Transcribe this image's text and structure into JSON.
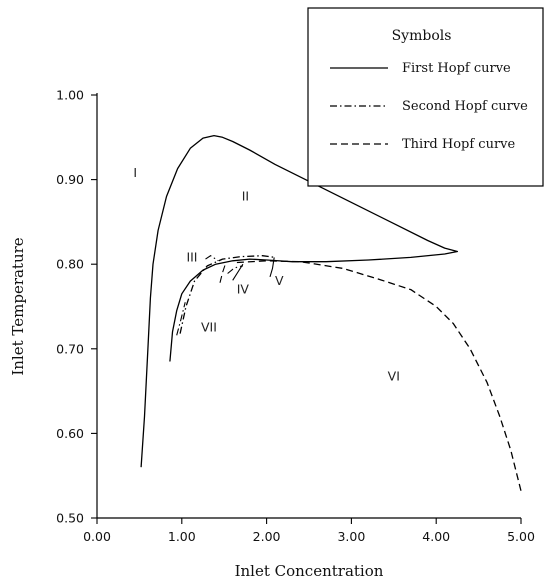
{
  "chart_data": {
    "type": "line",
    "xlabel": "Inlet Concentration",
    "ylabel": "Inlet Temperature",
    "xlim": [
      0,
      5
    ],
    "ylim": [
      0.5,
      1.0
    ],
    "xticks": [
      0,
      1,
      2,
      3,
      4,
      5
    ],
    "yticks": [
      0.5,
      0.6,
      0.7,
      0.8,
      0.9,
      1.0
    ],
    "xtick_labels": [
      "0.00",
      "1.00",
      "2.00",
      "3.00",
      "4.00",
      "5.00"
    ],
    "ytick_labels": [
      "0.50",
      "0.60",
      "0.70",
      "0.80",
      "0.90",
      "1.00"
    ],
    "grid": false,
    "legend": {
      "title": "Symbols",
      "position": "top-right",
      "entries": [
        "First Hopf curve",
        "Second Hopf curve",
        "Third Hopf curve"
      ]
    },
    "series": [
      {
        "name": "First Hopf curve",
        "dash": "solid",
        "color": "#000000",
        "x": [
          0.52,
          0.56,
          0.6,
          0.63,
          0.66,
          0.72,
          0.82,
          0.95,
          1.1,
          1.25,
          1.38,
          1.48,
          1.6,
          1.8,
          2.1,
          2.5,
          3.0,
          3.5,
          3.9,
          4.1,
          4.25,
          4.1,
          3.7,
          3.2,
          2.7,
          2.3,
          2.0,
          1.8,
          1.6,
          1.4,
          1.25,
          1.1,
          1.0,
          0.94,
          0.89,
          0.86
        ],
        "y": [
          0.56,
          0.62,
          0.7,
          0.76,
          0.8,
          0.84,
          0.88,
          0.913,
          0.937,
          0.949,
          0.952,
          0.95,
          0.945,
          0.935,
          0.918,
          0.898,
          0.873,
          0.848,
          0.828,
          0.819,
          0.815,
          0.812,
          0.808,
          0.805,
          0.803,
          0.803,
          0.805,
          0.806,
          0.804,
          0.8,
          0.793,
          0.78,
          0.765,
          0.745,
          0.72,
          0.685
        ]
      },
      {
        "name": "Second Hopf curve",
        "dash": "dash-dot",
        "color": "#000000",
        "x": [
          0.98,
          1.05,
          1.15,
          1.3,
          1.48,
          1.7,
          1.95,
          2.1
        ],
        "y": [
          0.718,
          0.75,
          0.78,
          0.798,
          0.806,
          0.809,
          0.81,
          0.808
        ]
      },
      {
        "name": "Third Hopf curve",
        "dash": "dashed",
        "color": "#000000",
        "x": [
          1.65,
          2.0,
          2.4,
          2.9,
          3.3,
          3.7,
          4.0,
          4.2,
          4.4,
          4.6,
          4.75,
          4.88,
          5.0
        ],
        "y": [
          0.802,
          0.804,
          0.803,
          0.795,
          0.783,
          0.77,
          0.75,
          0.73,
          0.7,
          0.66,
          0.62,
          0.58,
          0.532
        ]
      }
    ],
    "region_labels": [
      {
        "text": "I",
        "x": 0.45,
        "y": 0.908
      },
      {
        "text": "II",
        "x": 1.75,
        "y": 0.88
      },
      {
        "text": "III",
        "x": 1.12,
        "y": 0.808
      },
      {
        "text": "IV",
        "x": 1.72,
        "y": 0.77
      },
      {
        "text": "V",
        "x": 2.15,
        "y": 0.78
      },
      {
        "text": "VI",
        "x": 3.5,
        "y": 0.667
      },
      {
        "text": "VII",
        "x": 1.32,
        "y": 0.725
      }
    ],
    "short_branches": [
      {
        "series": "Second Hopf curve",
        "x": [
          1.28,
          1.34,
          1.43
        ],
        "y": [
          0.806,
          0.81,
          0.804
        ]
      },
      {
        "series": "First Hopf curve",
        "x": [
          1.6,
          1.67,
          1.72
        ],
        "y": [
          0.781,
          0.792,
          0.8
        ]
      },
      {
        "series": "Second Hopf curve",
        "x": [
          1.54,
          1.6,
          1.66,
          1.72
        ],
        "y": [
          0.789,
          0.794,
          0.797,
          0.798
        ]
      },
      {
        "series": "Third Hopf curve",
        "x": [
          1.45,
          1.48,
          1.52
        ],
        "y": [
          0.778,
          0.79,
          0.802
        ]
      },
      {
        "series": "First Hopf curve",
        "x": [
          2.04,
          2.07,
          2.09
        ],
        "y": [
          0.785,
          0.795,
          0.808
        ]
      },
      {
        "series": "Second Hopf curve",
        "x": [
          0.94,
          0.99,
          1.04
        ],
        "y": [
          0.716,
          0.735,
          0.755
        ]
      }
    ]
  }
}
